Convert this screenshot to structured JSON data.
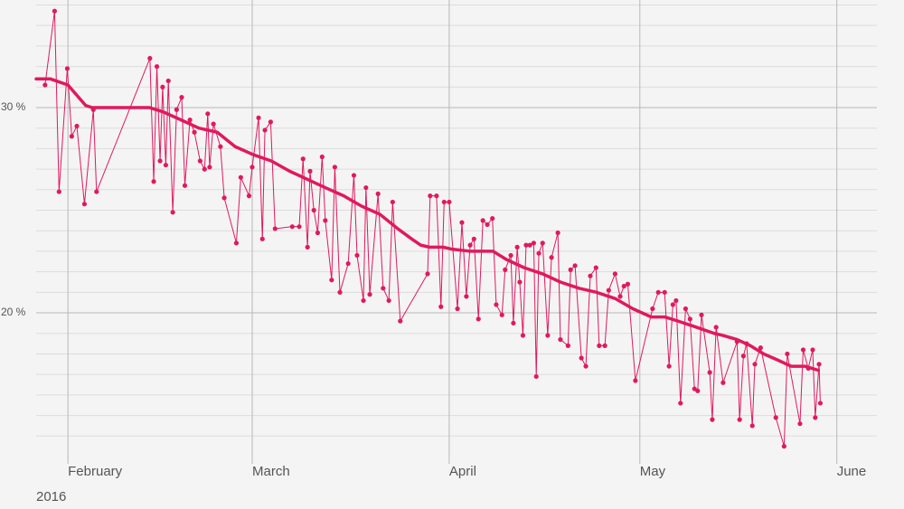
{
  "chart_data": {
    "type": "line",
    "year_label": "2016",
    "xlim": [
      27,
      159.3
    ],
    "xticks": [
      {
        "value": 32,
        "label": "February"
      },
      {
        "value": 61,
        "label": "March"
      },
      {
        "value": 92,
        "label": "April"
      },
      {
        "value": 122,
        "label": "May"
      },
      {
        "value": 153,
        "label": "June"
      }
    ],
    "ylim": [
      13,
      35.24
    ],
    "yticks": [
      {
        "value": 20,
        "label": "20 %"
      },
      {
        "value": 30,
        "label": "30 %"
      }
    ],
    "minor_yticks": [
      14,
      15,
      16,
      17,
      18,
      19,
      21,
      22,
      23,
      24,
      25,
      26,
      27,
      28,
      29,
      31,
      32,
      33,
      34,
      35
    ],
    "grid": true,
    "series": [
      {
        "color": "#e0195e",
        "markers": true,
        "line_width": 1,
        "x": [
          28.4,
          29.9,
          30.6,
          31.9,
          32.6,
          33.4,
          34.6,
          36.0,
          36.5,
          44.9,
          45.5,
          46.0,
          46.5,
          46.9,
          47.4,
          47.8,
          48.5,
          49.1,
          49.9,
          50.4,
          51.2,
          51.9,
          52.8,
          53.5,
          54.0,
          54.3,
          54.9,
          56.0,
          56.6,
          58.5,
          59.2,
          60.5,
          61.0,
          62.0,
          62.6,
          63.0,
          63.9,
          64.6,
          67.3,
          68.4,
          69.0,
          69.7,
          70.1,
          70.7,
          71.3,
          72.0,
          72.5,
          73.5,
          74.0,
          74.8,
          76.1,
          77.0,
          77.5,
          78.5,
          78.9,
          79.5,
          80.8,
          81.6,
          82.5,
          83.1,
          84.3,
          88.6,
          89.0,
          90.0,
          90.7,
          91.2,
          92.0,
          93.3,
          94.0,
          94.7,
          95.3,
          95.9,
          96.6,
          97.3,
          98.0,
          98.8,
          99.4,
          100.3,
          100.8,
          101.7,
          102.1,
          102.7,
          103.1,
          103.6,
          104.1,
          104.7,
          105.3,
          105.7,
          106.1,
          106.7,
          107.5,
          108.1,
          109.1,
          109.5,
          110.7,
          111.1,
          111.8,
          112.8,
          113.5,
          114.2,
          115.1,
          115.6,
          116.5,
          117.1,
          118.1,
          118.9,
          119.5,
          120.1,
          121.3,
          124.0,
          124.9,
          125.9,
          126.6,
          127.2,
          127.7,
          128.4,
          129.2,
          129.9,
          130.6,
          131.1,
          131.7,
          133.0,
          133.4,
          134.0,
          135.1,
          137.3,
          137.7,
          138.3,
          138.8,
          139.7,
          140.1,
          141.0,
          143.4,
          144.7,
          145.2,
          147.2,
          147.7,
          148.5,
          149.2,
          149.6,
          150.2,
          150.4
        ],
        "values": [
          31.1,
          34.7,
          25.9,
          31.9,
          28.6,
          29.1,
          25.3,
          29.9,
          25.9,
          32.4,
          26.4,
          32.0,
          27.4,
          31.0,
          27.2,
          31.3,
          24.9,
          29.9,
          30.5,
          26.2,
          29.4,
          28.8,
          27.4,
          27.0,
          29.7,
          27.1,
          29.2,
          28.1,
          25.6,
          23.4,
          26.6,
          25.7,
          27.1,
          29.5,
          23.6,
          28.9,
          29.3,
          24.1,
          24.2,
          24.2,
          27.5,
          23.2,
          26.9,
          25.0,
          23.9,
          27.6,
          24.5,
          21.6,
          27.1,
          21.0,
          22.4,
          26.7,
          22.8,
          20.6,
          26.1,
          20.9,
          25.8,
          21.2,
          20.6,
          25.4,
          19.6,
          21.9,
          25.7,
          25.7,
          20.3,
          25.4,
          25.4,
          20.2,
          24.4,
          20.8,
          23.3,
          23.6,
          19.7,
          24.5,
          24.3,
          24.6,
          20.4,
          19.9,
          22.1,
          22.8,
          19.5,
          23.2,
          21.5,
          18.9,
          23.3,
          23.3,
          23.4,
          16.9,
          22.9,
          23.4,
          18.9,
          22.7,
          23.9,
          18.7,
          18.4,
          22.1,
          22.3,
          17.8,
          17.4,
          21.8,
          22.2,
          18.4,
          18.4,
          21.1,
          21.9,
          20.8,
          21.3,
          21.4,
          16.7,
          20.2,
          21.0,
          21.0,
          17.4,
          20.4,
          20.6,
          15.6,
          20.2,
          19.7,
          16.3,
          16.2,
          19.9,
          17.1,
          14.8,
          19.3,
          16.6,
          18.6,
          14.8,
          17.9,
          18.5,
          14.5,
          17.5,
          18.3,
          14.9,
          13.5,
          18.0,
          14.6,
          18.2,
          17.3,
          18.2,
          14.9,
          17.5,
          15.6
        ]
      },
      {
        "color": "#e0195e",
        "markers": false,
        "line_width": 3.5,
        "x": [
          27.0,
          29.2,
          32.0,
          33.4,
          34.8,
          35.8,
          44.8,
          46.9,
          49.8,
          52.6,
          55.5,
          58.3,
          61.2,
          64.0,
          66.9,
          69.7,
          72.5,
          75.4,
          78.2,
          81.1,
          83.9,
          86.1,
          87.5,
          88.9,
          91.0,
          92.5,
          95.3,
          98.9,
          101.0,
          103.8,
          106.7,
          109.5,
          112.4,
          115.2,
          118.1,
          120.9,
          123.8,
          125.9,
          128.0,
          130.9,
          133.7,
          135.1,
          137.3,
          139.4,
          141.5,
          143.7,
          145.8,
          148.0,
          150.1
        ],
        "values": [
          31.4,
          31.4,
          31.1,
          30.6,
          30.1,
          30.0,
          30.0,
          29.8,
          29.4,
          29.0,
          28.8,
          28.1,
          27.7,
          27.4,
          26.9,
          26.5,
          26.1,
          25.7,
          25.2,
          24.8,
          24.1,
          23.6,
          23.3,
          23.2,
          23.2,
          23.1,
          23.0,
          23.0,
          22.6,
          22.2,
          21.9,
          21.5,
          21.2,
          21.0,
          20.7,
          20.2,
          19.8,
          19.8,
          19.6,
          19.3,
          19.0,
          18.9,
          18.7,
          18.4,
          18.0,
          17.7,
          17.4,
          17.4,
          17.2
        ]
      }
    ]
  }
}
